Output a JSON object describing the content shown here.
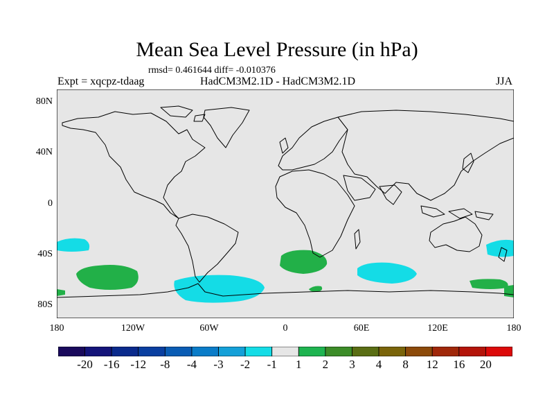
{
  "title": "Mean Sea Level Pressure (in hPa)",
  "stats": "rmsd= 0.461644 diff= -0.010376",
  "expt": "Expt = xqcpz-tdaag",
  "subtitle": "HadCM3M2.1D - HadCM3M2.1D",
  "season": "JJA",
  "y_axis_labels": [
    "80N",
    "40N",
    "0",
    "40S",
    "80S"
  ],
  "x_axis_labels": [
    "180",
    "120W",
    "60W",
    "0",
    "60E",
    "120E",
    "180"
  ],
  "colorbar": {
    "labels": [
      "-20",
      "-16",
      "-12",
      "-8",
      "-4",
      "-3",
      "-2",
      "-1",
      "1",
      "2",
      "3",
      "4",
      "8",
      "12",
      "16",
      "20"
    ],
    "colors": [
      "#1a0a5c",
      "#14147a",
      "#0a2a8c",
      "#0a3fa0",
      "#0a5cb4",
      "#0a7cc8",
      "#14a0d8",
      "#14dce6",
      "#e6e6e6",
      "#1eb450",
      "#3c8c28",
      "#5a6e14",
      "#7a640a",
      "#8c4a0a",
      "#a0280a",
      "#b4140a",
      "#dc0a0a"
    ]
  },
  "map_background": "#e6e6e6",
  "anomaly_colors": {
    "negative": "#14dce6",
    "positive": "#22b048"
  }
}
